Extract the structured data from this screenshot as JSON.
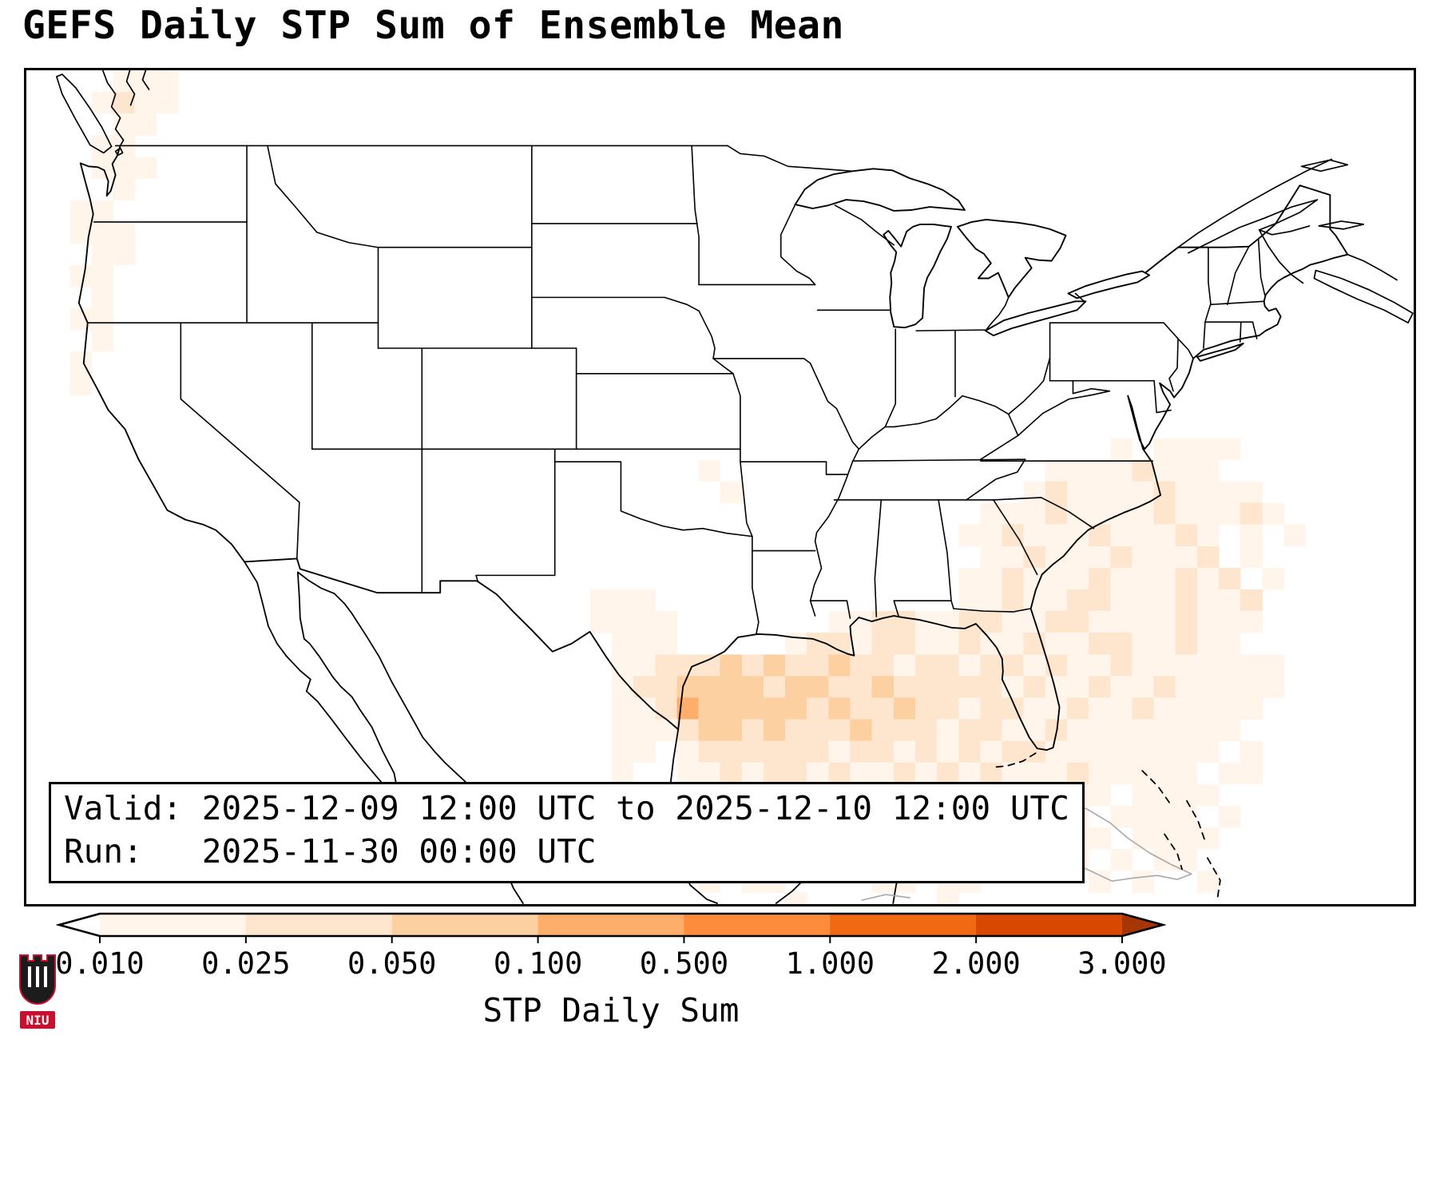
{
  "title": "GEFS Daily STP Sum of Ensemble Mean",
  "info_box": {
    "lines": [
      "Valid: 2025-12-09 12:00 UTC to 2025-12-10 12:00 UTC",
      "Run:   2025-11-30 00:00 UTC"
    ]
  },
  "colorbar": {
    "label": "STP Daily Sum",
    "ticks": [
      "0.010",
      "0.025",
      "0.050",
      "0.100",
      "0.500",
      "1.000",
      "2.000",
      "3.000"
    ],
    "colors": [
      "#ffffff",
      "#fff5eb",
      "#fee6ce",
      "#fdd0a2",
      "#fdae6b",
      "#fd8d3c",
      "#f16913",
      "#d94801",
      "#a63603"
    ],
    "extend": "both"
  },
  "logo": {
    "text": "NIU"
  },
  "chart_data": {
    "type": "heatmap",
    "title": "GEFS Daily STP Sum of Ensemble Mean",
    "variable": "STP Daily Sum",
    "valid": "2025-12-09 12:00 UTC to 2025-12-10 12:00 UTC",
    "run": "2025-11-30 00:00 UTC",
    "levels": [
      0.01,
      0.025,
      0.05,
      0.1,
      0.5,
      1.0,
      2.0,
      3.0
    ],
    "colormap": "white-to-orange discrete (Oranges), triangular extensions both ends",
    "legend_position": "bottom horizontal colorbar",
    "regions": [
      {
        "area": "Pacific Northwest coast (WA/OR/N-CA)",
        "max_bin": "0.025-0.050",
        "coverage": "scattered light cells"
      },
      {
        "area": "Gulf of Mexico off TX/LA coast",
        "max_bin": "0.100-0.500",
        "coverage": "broad, strongest on map"
      },
      {
        "area": "Central Gulf Coast (LA/MS/AL/FL panhandle)",
        "max_bin": "0.050-0.100",
        "coverage": "broad"
      },
      {
        "area": "Florida peninsula and adjacent waters",
        "max_bin": "0.050-0.100",
        "coverage": "broad"
      },
      {
        "area": "Western Atlantic off Southeast US coast",
        "max_bin": "0.050-0.100",
        "coverage": "broad speckled"
      },
      {
        "area": "Near Cuba / Bahamas",
        "max_bin": "0.010-0.050",
        "coverage": "scattered"
      },
      {
        "area": "Interior Midwest (isolated cells)",
        "max_bin": "0.010-0.025",
        "coverage": "isolated"
      }
    ],
    "grid_note": "Raster rows use '.' for no shading; digits 1-7 index colorbar bins above 0.010 (1 = 0.010-0.025, 2 = 0.025-0.050, 3 = 0.050-0.100, 4 = 0.100-0.500, 5 = 0.500-1.000). Grid cell is approx 1 degree.",
    "rasters": [
      {
        "name": "pacific-northwest",
        "col0": 1,
        "row0": 0,
        "rows": [
          "...111...",
          "..1211...",
          "...11....",
          "..11.....",
          "..111....",
          "...1.....",
          ".11......",
          ".111.....",
          "..11.....",
          ".11......",
          "..1......",
          ".11......",
          "..1......",
          ".1.......",
          ".1.......",
          "........."
        ]
      },
      {
        "name": "gulf-southeast-atlantic",
        "col0": 25,
        "row0": 15,
        "rows": [
          "..................................",
          "..................................",
          [
            ".........................",
            "1.1111",
            "..."
          ],
          [
            "......",
            "1",
            "...............",
            "11112111",
            "...."
          ],
          [
            ".......",
            "1",
            ".............",
            "12111121111",
            ".."
          ],
          [
            "...................",
            "11121111211121",
            "."
          ],
          [
            "..................",
            "112111211121.1.1"
          ],
          [
            "...................",
            "11211121112.1.."
          ],
          [
            "..................",
            "1121112111212.1."
          ],
          [
            ".",
            "111",
            "..............",
            "11211221112112",
            ".."
          ],
          [
            ".",
            "1111",
            ".......",
            "1122112",
            "21122111",
            "12111",
            ".."
          ],
          [
            "..",
            "111",
            ".....",
            "12212211",
            "2112",
            "112211211",
            "..."
          ],
          [
            "..",
            "112",
            "223232",
            "232212",
            "2122",
            "1211211",
            "11111",
            "."
          ],
          [
            "..",
            "122",
            "333323",
            "322322",
            "2221",
            "2112112",
            "11111",
            "."
          ],
          [
            "..",
            "112",
            "433333",
            "232232",
            "2122",
            "1121121",
            "1111.",
            "."
          ],
          [
            "..",
            "111",
            "233232",
            "223222",
            "1221",
            "1211111",
            "111..",
            "."
          ],
          [
            "..",
            "11.",
            "122222",
            "212212",
            "1212",
            "2111111",
            "11.1.",
            "."
          ],
          [
            "..",
            "1..",
            "112122",
            "121121",
            "2121",
            "1121111",
            "1.11.",
            "."
          ],
          [
            "..",
            "...",
            "111211",
            "112112",
            "1111",
            "1211.11",
            "11...",
            "."
          ],
          [
            ".....",
            "11111.",
            "1.1111",
            "11.1",
            "111.111",
            "1.1..",
            "."
          ],
          [
            ".....",
            "1111.1",
            "1.1112",
            "11.1",
            "1.11.11",
            "11...",
            "."
          ],
          [
            ".....",
            ".11.1.",
            ".111.1",
            "1..1",
            ".11.1.1",
            "1....",
            "."
          ],
          [
            "......",
            "1.11..",
            "..11.1",
            "1...",
            "..1.1..",
            "1...",
            "."
          ],
          [
            "..........",
            "1",
            "......",
            "1",
            "................"
          ]
        ]
      }
    ]
  }
}
